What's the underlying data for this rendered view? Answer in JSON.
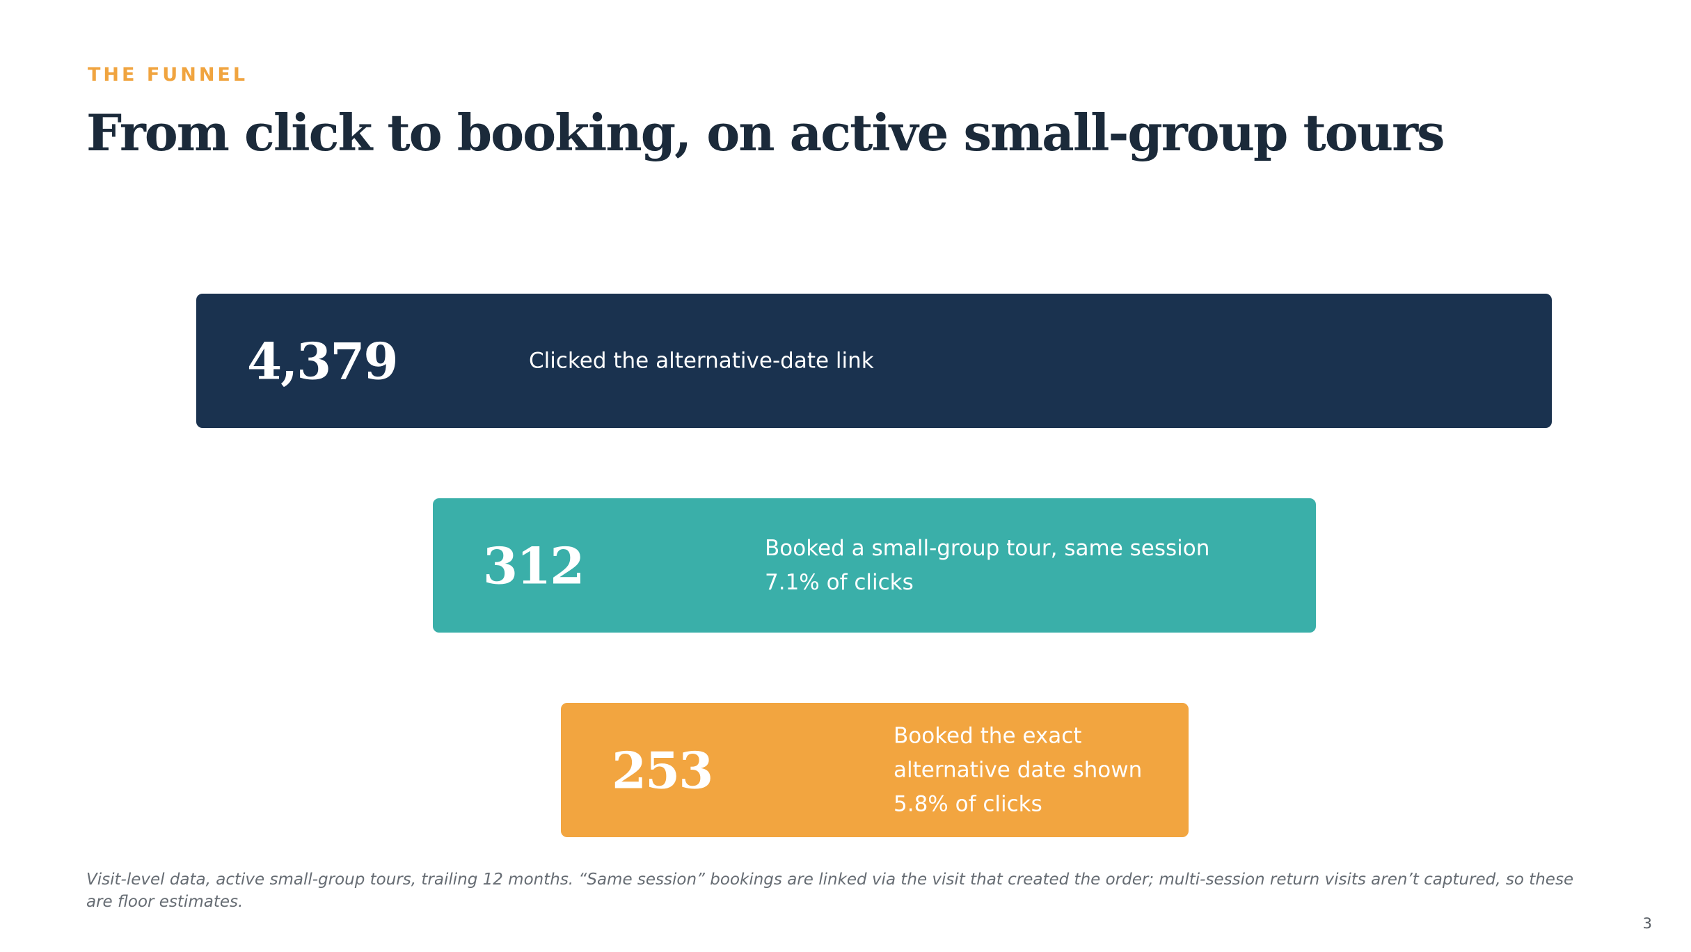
{
  "header": {
    "eyebrow": "THE FUNNEL",
    "title": "From click to booking, on active small-group tours"
  },
  "funnel": {
    "stages": [
      {
        "value": "4,379",
        "label": "Clicked the alternative-date link",
        "sub": "",
        "color": "#1A324F"
      },
      {
        "value": "312",
        "label": "Booked a small-group tour, same session",
        "sub": "7.1% of clicks",
        "color": "#3AAFA9"
      },
      {
        "value": "253",
        "label_line1": "Booked the exact",
        "label_line2": "alternative date shown",
        "sub": "5.8% of clicks",
        "color": "#F2A540"
      }
    ]
  },
  "footnote": "Visit-level data, active small-group tours, trailing 12 months. “Same session” bookings are linked via the visit that created the order; multi-session return visits aren’t captured, so these are floor estimates.",
  "page_number": "3",
  "colors": {
    "accent": "#F0A43F",
    "title": "#1B2A3A"
  }
}
